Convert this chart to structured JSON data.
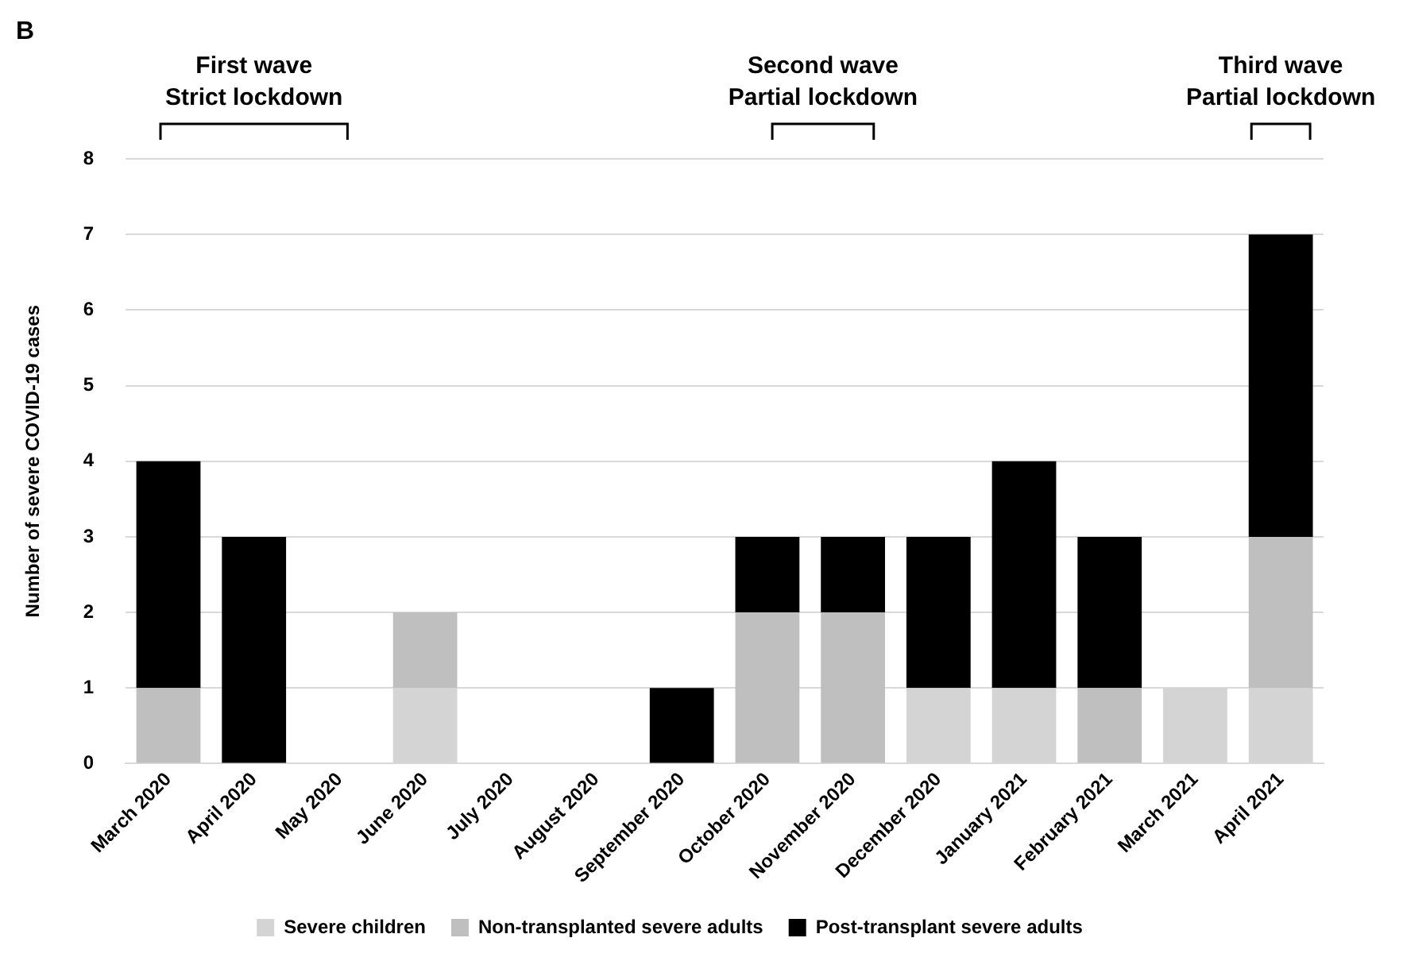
{
  "chart_data": {
    "type": "bar",
    "stacked": true,
    "ylabel": "Number of severe COVID-19 cases",
    "annotations": [
      "B",
      "First wave\nStrict lockdown",
      "Second wave\nPartial lockdown",
      "Third wave\nPartial lockdown"
    ],
    "categories": [
      "March 2020",
      "April 2020",
      "May 2020",
      "June 2020",
      "July 2020",
      "August 2020",
      "September 2020",
      "October 2020",
      "November 2020",
      "December 2020",
      "January 2021",
      "February 2021",
      "March 2021",
      "April 2021"
    ],
    "series": [
      {
        "name": "Severe children",
        "color": "#d4d4d4",
        "values": [
          0,
          0,
          0,
          1,
          0,
          0,
          0,
          0,
          0,
          1,
          1,
          0,
          1,
          1
        ]
      },
      {
        "name": "Non-transplanted severe adults",
        "color": "#bfbfbf",
        "values": [
          1,
          0,
          0,
          1,
          0,
          0,
          0,
          2,
          2,
          0,
          0,
          1,
          0,
          2
        ]
      },
      {
        "name": "Post-transplant severe adults",
        "color": "#000000",
        "values": [
          3,
          3,
          0,
          0,
          0,
          0,
          1,
          1,
          1,
          2,
          3,
          2,
          0,
          4
        ]
      }
    ],
    "ylim": [
      0,
      8
    ],
    "yticks": [
      0,
      1,
      2,
      3,
      4,
      5,
      6,
      7,
      8
    ],
    "grid": "y",
    "legend": "bottom"
  }
}
